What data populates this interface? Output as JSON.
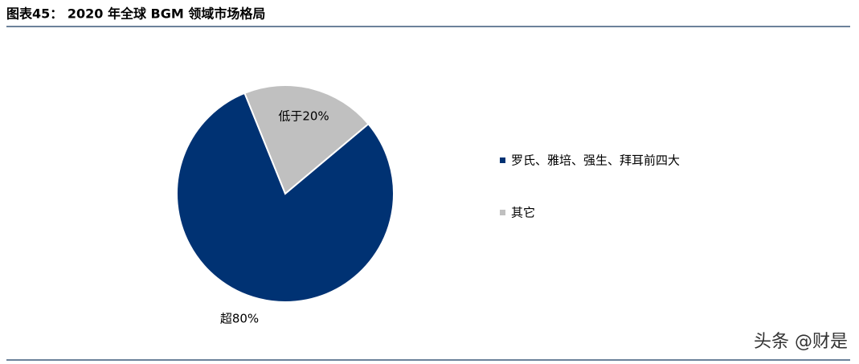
{
  "chart_data": {
    "type": "pie",
    "title": "图表45：  2020 年全球 BGM 领域市场格局",
    "categories": [
      "罗氏、雅培、强生、拜耳前四大",
      "其它"
    ],
    "values": [
      80,
      20
    ],
    "value_labels": [
      "超80%",
      "低于20%"
    ],
    "colors": [
      "#003273",
      "#c0c0c0"
    ],
    "legend": "right"
  },
  "watermark": "头条 @财是"
}
